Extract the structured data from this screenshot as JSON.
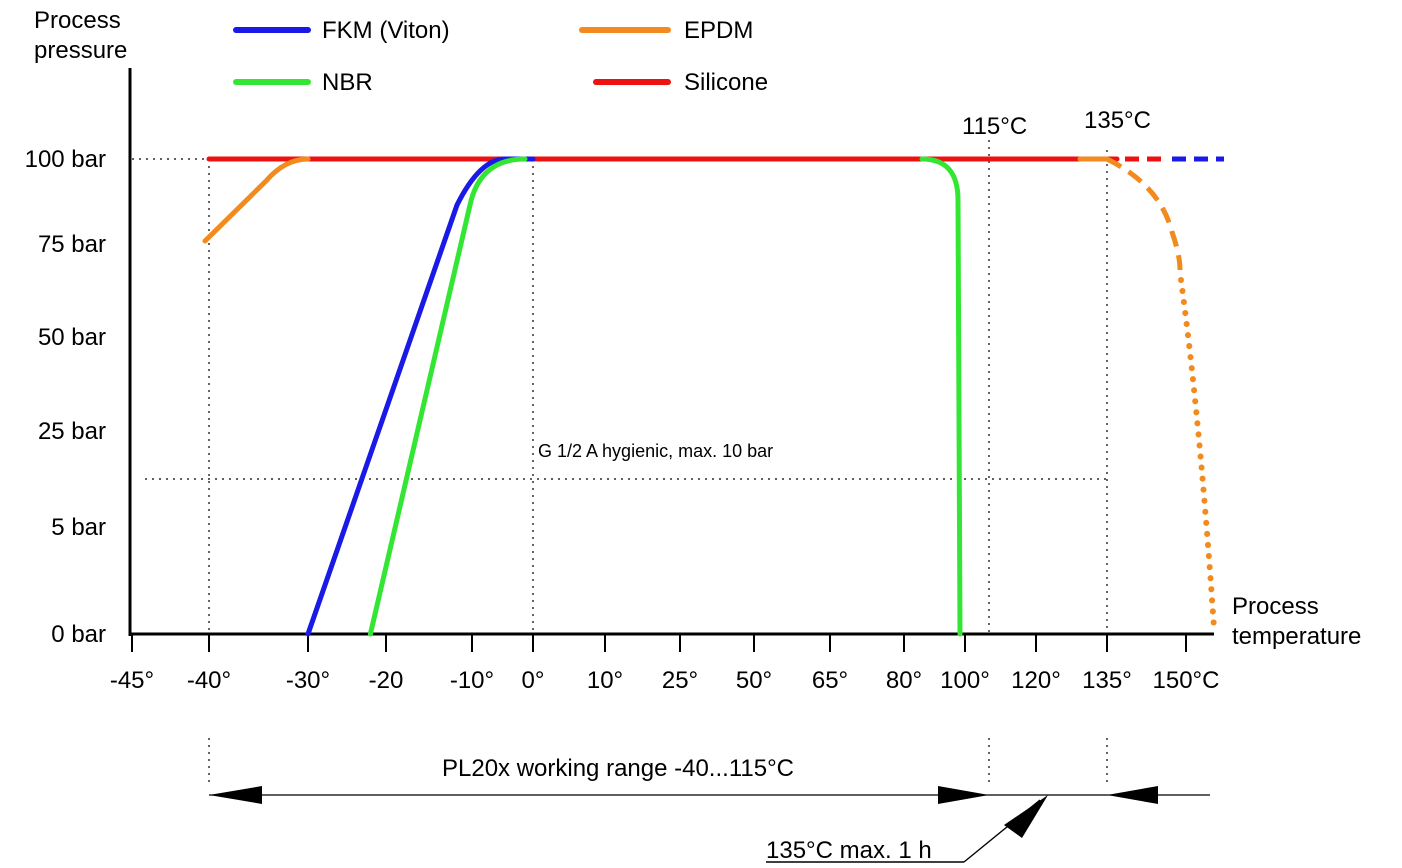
{
  "chart_data": {
    "type": "line",
    "ylabel": "Process\npressure",
    "xlabel": "Process\ntemperature",
    "x_ticks": [
      "-45°",
      "-40°",
      "-30°",
      "-20",
      "-10°",
      "0°",
      "10°",
      "25°",
      "50°",
      "65°",
      "80°",
      "100°",
      "120°",
      "135°",
      "150°C"
    ],
    "y_ticks": [
      "0 bar",
      "5 bar",
      "25 bar",
      "50 bar",
      "75 bar",
      "100 bar"
    ],
    "legend": [
      {
        "name": "FKM (Viton)",
        "color": "#1a1ae6"
      },
      {
        "name": "EPDM",
        "color": "#f28a1e"
      },
      {
        "name": "NBR",
        "color": "#33e633"
      },
      {
        "name": "Silicone",
        "color": "#ee1111"
      }
    ],
    "series": [
      {
        "name": "FKM (Viton)",
        "color": "#1a1ae6",
        "points": [
          [
            -30,
            "0 bar"
          ],
          [
            -12,
            "75 bar"
          ],
          [
            0,
            "100 bar"
          ],
          [
            135,
            "100 bar"
          ]
        ],
        "extension_dashed": [
          [
            135,
            "100 bar"
          ],
          [
            150,
            "100 bar"
          ]
        ]
      },
      {
        "name": "EPDM",
        "color": "#f28a1e",
        "points": [
          [
            -40,
            "75 bar"
          ],
          [
            -30,
            "100 bar"
          ],
          [
            135,
            "100 bar"
          ]
        ],
        "extension_dashed": [
          [
            135,
            "100 bar"
          ],
          [
            145,
            "75 bar"
          ]
        ],
        "extension_dotted": [
          [
            145,
            "75 bar"
          ],
          [
            150,
            "0 bar"
          ]
        ]
      },
      {
        "name": "NBR",
        "color": "#33e633",
        "points": [
          [
            -22,
            "0 bar"
          ],
          [
            -11,
            "75 bar"
          ],
          [
            0,
            "100 bar"
          ],
          [
            95,
            "100 bar"
          ],
          [
            102,
            "0 bar"
          ]
        ]
      },
      {
        "name": "Silicone",
        "color": "#ee1111",
        "points": [
          [
            -40,
            "100 bar"
          ],
          [
            135,
            "100 bar"
          ]
        ],
        "extension_dashed": [
          [
            135,
            "100 bar"
          ],
          [
            140,
            "100 bar"
          ]
        ]
      }
    ],
    "reference_lines": {
      "vertical": [
        "-40°",
        "0°",
        "115°C",
        "135°C"
      ],
      "horizontal": [
        "100 bar",
        "G 1/2 A hygienic, max. 10 bar"
      ]
    },
    "annotations": {
      "t115": "115°C",
      "t135": "135°C",
      "hygienic": "G 1/2 A hygienic, max. 10 bar",
      "range": "PL20x working range -40...115°C",
      "max1h": "135°C max. 1 h"
    },
    "grid": false,
    "legend_position": "top"
  }
}
